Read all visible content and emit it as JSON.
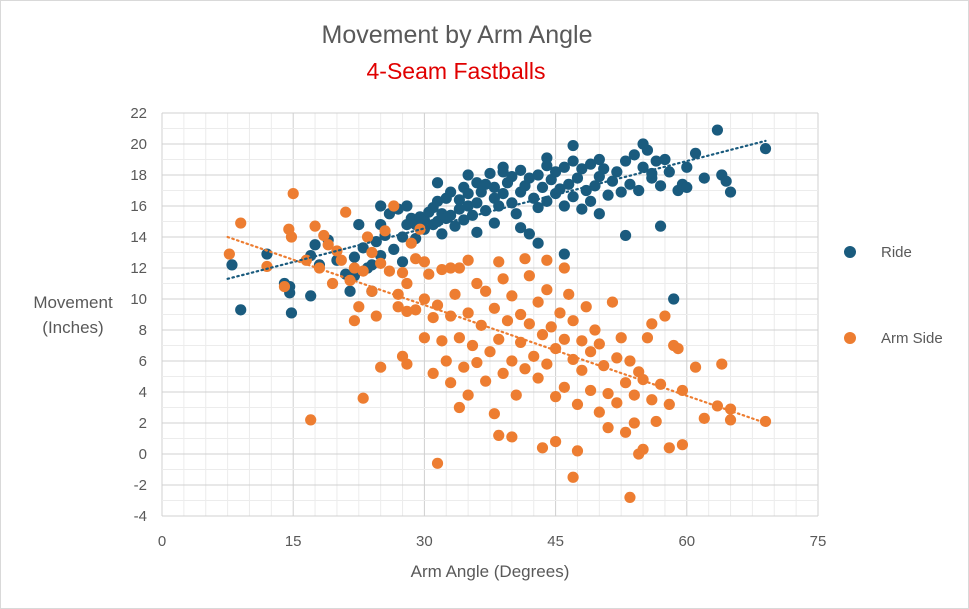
{
  "chart_data": {
    "type": "scatter",
    "title": "Movement by Arm Angle",
    "subtitle": "4-Seam Fastballs",
    "xlabel": "Arm Angle (Degrees)",
    "ylabel_lines": [
      "Movement",
      "(Inches)"
    ],
    "xlim": [
      0,
      75
    ],
    "ylim": [
      -4,
      22
    ],
    "xticks": [
      0,
      15,
      30,
      45,
      60,
      75
    ],
    "yticks": [
      -4,
      -2,
      0,
      2,
      4,
      6,
      8,
      10,
      12,
      14,
      16,
      18,
      20,
      22
    ],
    "grid": true,
    "legend_position": "right",
    "series": [
      {
        "name": "Ride",
        "color": "#1a5b7e",
        "trendline": {
          "type": "linear",
          "from": [
            7.5,
            11.3
          ],
          "to": [
            69,
            20.2
          ]
        },
        "points": [
          [
            8,
            12.2
          ],
          [
            9,
            9.3
          ],
          [
            12,
            12.9
          ],
          [
            14,
            11.0
          ],
          [
            14.6,
            10.4
          ],
          [
            14.8,
            9.1
          ],
          [
            14.6,
            10.8
          ],
          [
            17,
            10.2
          ],
          [
            17,
            12.8
          ],
          [
            17.5,
            13.5
          ],
          [
            18,
            12.2
          ],
          [
            19,
            13.8
          ],
          [
            20,
            12.5
          ],
          [
            21,
            11.6
          ],
          [
            21.5,
            10.5
          ],
          [
            22,
            12.7
          ],
          [
            22,
            11.5
          ],
          [
            22.5,
            14.8
          ],
          [
            23,
            13.3
          ],
          [
            23.5,
            12.0
          ],
          [
            24,
            10.5
          ],
          [
            24,
            12.2
          ],
          [
            24.5,
            13.7
          ],
          [
            25,
            14.8
          ],
          [
            25,
            12.8
          ],
          [
            25.5,
            14.1
          ],
          [
            26,
            15.5
          ],
          [
            26.5,
            13.2
          ],
          [
            27,
            15.8
          ],
          [
            27.5,
            14.0
          ],
          [
            27.5,
            12.4
          ],
          [
            28,
            14.8
          ],
          [
            28,
            16.0
          ],
          [
            28.5,
            15.2
          ],
          [
            29,
            13.9
          ],
          [
            29,
            14.8
          ],
          [
            29.5,
            15.3
          ],
          [
            30,
            15.1
          ],
          [
            30,
            14.5
          ],
          [
            30.5,
            15.6
          ],
          [
            31,
            14.8
          ],
          [
            31,
            15.9
          ],
          [
            31.5,
            16.3
          ],
          [
            31.5,
            15.0
          ],
          [
            32,
            15.5
          ],
          [
            32,
            14.2
          ],
          [
            32.5,
            16.5
          ],
          [
            32.5,
            15.2
          ],
          [
            33,
            16.9
          ],
          [
            33,
            15.4
          ],
          [
            33.5,
            14.7
          ],
          [
            34,
            15.8
          ],
          [
            34,
            16.4
          ],
          [
            34.5,
            17.2
          ],
          [
            34.5,
            15.1
          ],
          [
            35,
            16.0
          ],
          [
            35,
            16.8
          ],
          [
            35.5,
            15.4
          ],
          [
            36,
            17.5
          ],
          [
            36,
            16.2
          ],
          [
            36.5,
            16.9
          ],
          [
            37,
            15.7
          ],
          [
            37,
            17.4
          ],
          [
            37.5,
            18.1
          ],
          [
            38,
            16.5
          ],
          [
            38,
            17.2
          ],
          [
            38.5,
            16.0
          ],
          [
            39,
            18.2
          ],
          [
            39,
            16.8
          ],
          [
            39.5,
            17.5
          ],
          [
            40,
            16.2
          ],
          [
            40,
            17.9
          ],
          [
            40.5,
            15.5
          ],
          [
            41,
            18.3
          ],
          [
            41,
            16.9
          ],
          [
            41.5,
            17.3
          ],
          [
            42,
            14.2
          ],
          [
            42,
            17.8
          ],
          [
            42.5,
            16.5
          ],
          [
            43,
            18.0
          ],
          [
            43,
            15.9
          ],
          [
            43.5,
            17.2
          ],
          [
            44,
            18.6
          ],
          [
            44,
            16.3
          ],
          [
            44.5,
            17.7
          ],
          [
            45,
            16.8
          ],
          [
            45,
            18.2
          ],
          [
            45.5,
            17.1
          ],
          [
            46,
            16.0
          ],
          [
            46,
            18.5
          ],
          [
            46.5,
            17.4
          ],
          [
            47,
            18.9
          ],
          [
            47,
            16.6
          ],
          [
            47.5,
            17.8
          ],
          [
            48,
            15.8
          ],
          [
            48,
            18.4
          ],
          [
            48.5,
            17.0
          ],
          [
            49,
            16.3
          ],
          [
            49,
            18.7
          ],
          [
            49.5,
            17.3
          ],
          [
            50,
            15.5
          ],
          [
            50,
            17.9
          ],
          [
            50.5,
            18.4
          ],
          [
            51,
            16.7
          ],
          [
            51.5,
            17.6
          ],
          [
            52,
            18.2
          ],
          [
            52.5,
            16.9
          ],
          [
            53,
            18.9
          ],
          [
            53.5,
            17.4
          ],
          [
            54,
            19.3
          ],
          [
            54.5,
            17.0
          ],
          [
            55,
            18.5
          ],
          [
            55.5,
            19.6
          ],
          [
            56,
            17.8
          ],
          [
            56.5,
            18.9
          ],
          [
            57,
            17.3
          ],
          [
            57.5,
            19.0
          ],
          [
            58,
            18.2
          ],
          [
            59,
            17.0
          ],
          [
            59.5,
            17.4
          ],
          [
            61,
            19.4
          ],
          [
            62,
            17.8
          ],
          [
            63.5,
            20.9
          ],
          [
            64,
            18.0
          ],
          [
            64.5,
            17.6
          ],
          [
            65,
            16.9
          ],
          [
            69,
            19.7
          ],
          [
            46,
            12.9
          ],
          [
            53,
            14.1
          ],
          [
            58.5,
            10.0
          ],
          [
            57,
            14.7
          ],
          [
            25,
            16.0
          ],
          [
            31.5,
            17.5
          ],
          [
            35,
            18.0
          ],
          [
            39,
            18.5
          ],
          [
            44,
            19.1
          ],
          [
            47,
            19.9
          ],
          [
            50,
            19.0
          ],
          [
            55,
            20.0
          ],
          [
            60,
            18.5
          ],
          [
            60,
            17.2
          ],
          [
            56,
            18.1
          ],
          [
            41,
            14.6
          ],
          [
            38,
            14.9
          ],
          [
            36,
            14.3
          ],
          [
            43,
            13.6
          ]
        ]
      },
      {
        "name": "Arm Side",
        "color": "#ed7d31",
        "trendline": {
          "type": "linear",
          "from": [
            7.5,
            14.0
          ],
          "to": [
            69,
            2.0
          ]
        },
        "points": [
          [
            7.7,
            12.9
          ],
          [
            9,
            14.9
          ],
          [
            12,
            12.1
          ],
          [
            14,
            10.8
          ],
          [
            14.5,
            14.5
          ],
          [
            14.8,
            14.0
          ],
          [
            15,
            16.8
          ],
          [
            16.5,
            12.5
          ],
          [
            17,
            2.2
          ],
          [
            17.5,
            14.7
          ],
          [
            18,
            12.0
          ],
          [
            18.5,
            14.1
          ],
          [
            19,
            13.5
          ],
          [
            19.5,
            11.0
          ],
          [
            20,
            13.1
          ],
          [
            20.5,
            12.5
          ],
          [
            21,
            15.6
          ],
          [
            21.5,
            11.2
          ],
          [
            22,
            8.6
          ],
          [
            22,
            12.0
          ],
          [
            22.5,
            9.5
          ],
          [
            23,
            11.8
          ],
          [
            23,
            3.6
          ],
          [
            23.5,
            14.0
          ],
          [
            24,
            13.0
          ],
          [
            24,
            10.5
          ],
          [
            24.5,
            8.9
          ],
          [
            25,
            12.3
          ],
          [
            25,
            5.6
          ],
          [
            25.5,
            14.4
          ],
          [
            26,
            11.8
          ],
          [
            26.5,
            16.0
          ],
          [
            27,
            10.3
          ],
          [
            27.5,
            11.7
          ],
          [
            27.5,
            6.3
          ],
          [
            28,
            9.2
          ],
          [
            28,
            5.8
          ],
          [
            28.5,
            13.6
          ],
          [
            29,
            12.6
          ],
          [
            29,
            9.3
          ],
          [
            29.5,
            14.5
          ],
          [
            30,
            10.0
          ],
          [
            30,
            7.5
          ],
          [
            30.5,
            11.6
          ],
          [
            31,
            5.2
          ],
          [
            31,
            8.8
          ],
          [
            31.5,
            9.6
          ],
          [
            32,
            7.3
          ],
          [
            32,
            11.9
          ],
          [
            32.5,
            6.0
          ],
          [
            33,
            8.9
          ],
          [
            33,
            4.6
          ],
          [
            33.5,
            10.3
          ],
          [
            34,
            7.5
          ],
          [
            34,
            12.0
          ],
          [
            34.5,
            5.6
          ],
          [
            35,
            9.1
          ],
          [
            35,
            3.8
          ],
          [
            35.5,
            7.0
          ],
          [
            36,
            11.0
          ],
          [
            36,
            5.9
          ],
          [
            36.5,
            8.3
          ],
          [
            37,
            4.7
          ],
          [
            37,
            10.5
          ],
          [
            37.5,
            6.6
          ],
          [
            38,
            9.4
          ],
          [
            38,
            2.6
          ],
          [
            38.5,
            7.4
          ],
          [
            39,
            11.3
          ],
          [
            39,
            5.2
          ],
          [
            39.5,
            8.6
          ],
          [
            40,
            6.0
          ],
          [
            40,
            10.2
          ],
          [
            40.5,
            3.8
          ],
          [
            41,
            9.0
          ],
          [
            41,
            7.2
          ],
          [
            41.5,
            5.5
          ],
          [
            42,
            11.5
          ],
          [
            42,
            8.4
          ],
          [
            42.5,
            6.3
          ],
          [
            43,
            9.8
          ],
          [
            43,
            4.9
          ],
          [
            43.5,
            7.7
          ],
          [
            44,
            10.6
          ],
          [
            44,
            5.8
          ],
          [
            44.5,
            8.2
          ],
          [
            45,
            6.8
          ],
          [
            45,
            3.7
          ],
          [
            45.5,
            9.1
          ],
          [
            46,
            7.4
          ],
          [
            46,
            4.3
          ],
          [
            46.5,
            10.3
          ],
          [
            47,
            6.1
          ],
          [
            47,
            8.6
          ],
          [
            47.5,
            3.2
          ],
          [
            48,
            7.3
          ],
          [
            48,
            5.4
          ],
          [
            48.5,
            9.5
          ],
          [
            49,
            6.6
          ],
          [
            49,
            4.1
          ],
          [
            49.5,
            8.0
          ],
          [
            50,
            2.7
          ],
          [
            50,
            7.1
          ],
          [
            50.5,
            5.7
          ],
          [
            51,
            3.9
          ],
          [
            51.5,
            9.8
          ],
          [
            52,
            6.2
          ],
          [
            52,
            3.3
          ],
          [
            52.5,
            7.5
          ],
          [
            53,
            4.6
          ],
          [
            53,
            1.4
          ],
          [
            53.5,
            6.0
          ],
          [
            54,
            3.8
          ],
          [
            54,
            2.0
          ],
          [
            54.5,
            5.3
          ],
          [
            55,
            4.8
          ],
          [
            55,
            0.3
          ],
          [
            55.5,
            7.5
          ],
          [
            56,
            3.5
          ],
          [
            56,
            8.4
          ],
          [
            56.5,
            2.1
          ],
          [
            57,
            4.5
          ],
          [
            57.5,
            8.9
          ],
          [
            58,
            3.2
          ],
          [
            58.5,
            7.0
          ],
          [
            59,
            6.8
          ],
          [
            59.5,
            4.1
          ],
          [
            59.5,
            0.6
          ],
          [
            61,
            5.6
          ],
          [
            62,
            2.3
          ],
          [
            63.5,
            3.1
          ],
          [
            64,
            5.8
          ],
          [
            65,
            2.9
          ],
          [
            65,
            2.2
          ],
          [
            69,
            2.1
          ],
          [
            31.5,
            -0.6
          ],
          [
            34,
            3.0
          ],
          [
            38.5,
            1.2
          ],
          [
            40,
            1.1
          ],
          [
            43.5,
            0.4
          ],
          [
            45,
            0.8
          ],
          [
            47,
            -1.5
          ],
          [
            47.5,
            0.2
          ],
          [
            51,
            1.7
          ],
          [
            53.5,
            -2.8
          ],
          [
            54.5,
            0.0
          ],
          [
            58,
            0.4
          ],
          [
            46,
            12.0
          ],
          [
            44,
            12.5
          ],
          [
            41.5,
            12.6
          ],
          [
            38.5,
            12.4
          ],
          [
            30,
            12.4
          ],
          [
            33,
            12.0
          ],
          [
            35,
            12.5
          ],
          [
            28,
            11.0
          ],
          [
            27,
            9.5
          ]
        ]
      }
    ]
  }
}
